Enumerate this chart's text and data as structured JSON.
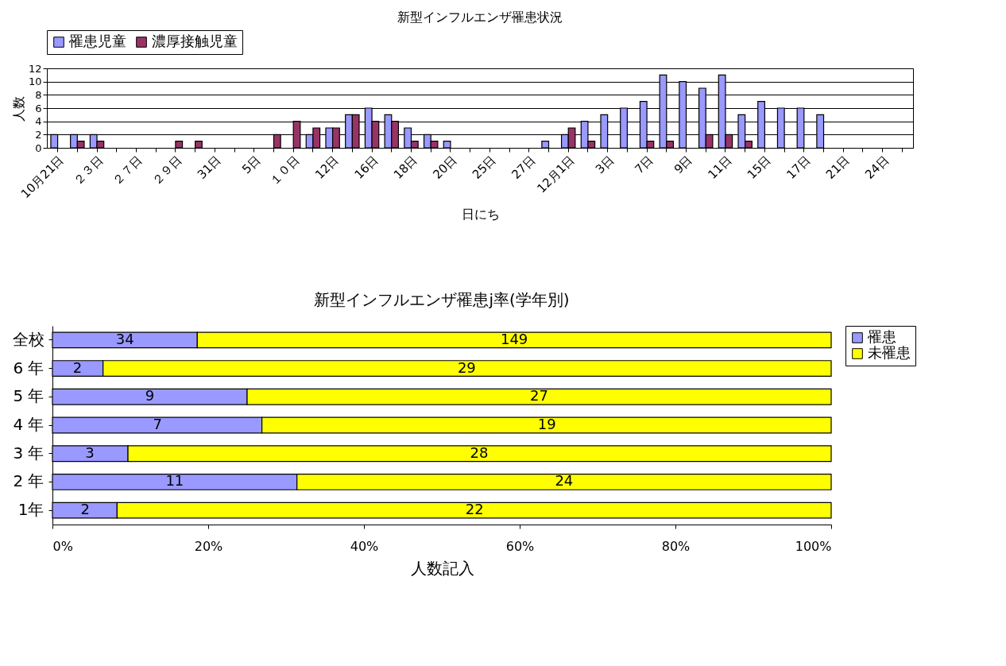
{
  "chart_data": [
    {
      "type": "bar",
      "title": "新型インフルエンザ罹患状況",
      "xlabel": "日にち",
      "ylabel": "人数",
      "categories": [
        "10月21日",
        null,
        "２３日",
        null,
        "２７日",
        null,
        "２９日",
        null,
        "31日",
        null,
        "5日",
        null,
        "１０日",
        null,
        "12日",
        null,
        "16日",
        null,
        "18日",
        null,
        "20日",
        null,
        "25日",
        null,
        "27日",
        null,
        "12月1日",
        null,
        "3日",
        null,
        "7日",
        null,
        "9日",
        null,
        "11日",
        null,
        "15日",
        null,
        "17日",
        null,
        "21日",
        null,
        "24日",
        null
      ],
      "series": [
        {
          "name": "罹患児童",
          "color": "#9999ff",
          "values": [
            2,
            2,
            2,
            null,
            null,
            null,
            null,
            null,
            null,
            null,
            null,
            null,
            null,
            2,
            3,
            5,
            6,
            5,
            3,
            2,
            1,
            null,
            null,
            null,
            null,
            1,
            2,
            4,
            5,
            6,
            7,
            11,
            10,
            9,
            11,
            5,
            7,
            6,
            6,
            5,
            null,
            null,
            null,
            null
          ]
        },
        {
          "name": "濃厚接触児童",
          "color": "#993366",
          "values": [
            null,
            1,
            1,
            null,
            null,
            null,
            1,
            1,
            null,
            null,
            null,
            2,
            4,
            3,
            3,
            5,
            4,
            4,
            1,
            1,
            null,
            null,
            null,
            null,
            null,
            null,
            3,
            1,
            null,
            null,
            1,
            1,
            null,
            2,
            2,
            1,
            null,
            null,
            null,
            null,
            null,
            null,
            null,
            null
          ]
        }
      ],
      "ylim": [
        0,
        12
      ],
      "yticks": [
        0,
        2,
        4,
        6,
        8,
        10,
        12
      ],
      "grid": "y",
      "legend": "top"
    },
    {
      "type": "bar",
      "orientation": "horizontal",
      "stacked": true,
      "title": "新型インフルエンザ罹患j率(学年別)",
      "xlabel": "人数記入",
      "categories": [
        "全校",
        "6 年",
        "5 年",
        "4 年",
        "3 年",
        "2 年",
        "1年"
      ],
      "series": [
        {
          "name": "罹患",
          "color": "#9999ff",
          "values": [
            18.6,
            6.5,
            25,
            26.9,
            9.7,
            31.4,
            8.3
          ]
        },
        {
          "name": "未罹患",
          "color": "#ffff00",
          "values": [
            81.4,
            93.5,
            75,
            73.1,
            90.3,
            68.6,
            91.7
          ]
        }
      ],
      "annotations": [
        {
          "text": "34",
          "x": 9.3,
          "y": "全校"
        },
        {
          "text": "149",
          "x": 59.3,
          "y": "全校"
        },
        {
          "text": "2",
          "x": 3.2,
          "y": "6 年"
        },
        {
          "text": "29",
          "x": 53.2,
          "y": "6 年"
        },
        {
          "text": "9",
          "x": 12.5,
          "y": "5 年"
        },
        {
          "text": "27",
          "x": 62.5,
          "y": "5 年"
        },
        {
          "text": "7",
          "x": 13.5,
          "y": "4 年"
        },
        {
          "text": "19",
          "x": 63.5,
          "y": "4 年"
        },
        {
          "text": "3",
          "x": 4.8,
          "y": "3 年"
        },
        {
          "text": "28",
          "x": 54.8,
          "y": "3 年"
        },
        {
          "text": "11",
          "x": 15.7,
          "y": "2 年"
        },
        {
          "text": "24",
          "x": 65.7,
          "y": "2 年"
        },
        {
          "text": "2",
          "x": 4.2,
          "y": "1年"
        },
        {
          "text": "22",
          "x": 54.2,
          "y": "1年"
        }
      ],
      "xlim": [
        0,
        100
      ],
      "xticks": [
        {
          "value": 0,
          "label": "0%"
        },
        {
          "value": 20,
          "label": "20%"
        },
        {
          "value": 40,
          "label": "40%"
        },
        {
          "value": 60,
          "label": "60%"
        },
        {
          "value": 80,
          "label": "80%"
        },
        {
          "value": 100,
          "label": "100%"
        }
      ],
      "legend": "right"
    }
  ]
}
